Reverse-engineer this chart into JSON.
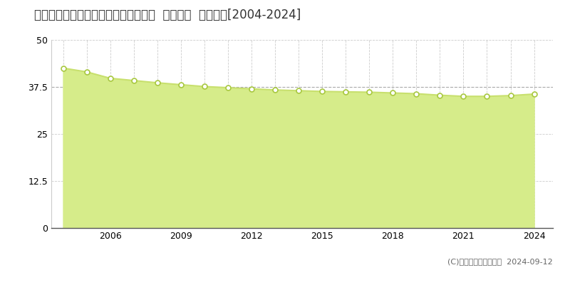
{
  "title": "愛知県知多市にしの台４丁目７番３外  地価公示  地価推移[2004-2024]",
  "years": [
    2004,
    2005,
    2006,
    2007,
    2008,
    2009,
    2010,
    2011,
    2012,
    2013,
    2014,
    2015,
    2016,
    2017,
    2018,
    2019,
    2020,
    2021,
    2022,
    2023,
    2024
  ],
  "values": [
    42.5,
    41.5,
    39.8,
    39.2,
    38.6,
    38.1,
    37.6,
    37.3,
    37.0,
    36.7,
    36.5,
    36.3,
    36.2,
    36.1,
    35.9,
    35.7,
    35.3,
    35.0,
    35.0,
    35.2,
    35.6
  ],
  "ylim": [
    0,
    50
  ],
  "yticks": [
    0,
    12.5,
    25,
    37.5,
    50
  ],
  "ytick_labels": [
    "0",
    "12.5",
    "25",
    "37.5",
    "50"
  ],
  "xticks": [
    2006,
    2009,
    2012,
    2015,
    2018,
    2021,
    2024
  ],
  "line_color": "#c8e06e",
  "fill_color": "#d6ec8a",
  "marker_facecolor": "#ffffff",
  "marker_edgecolor": "#a8c840",
  "bg_color": "#ffffff",
  "plot_bg_color": "#ffffff",
  "grid_color": "#cccccc",
  "spine_color": "#cccccc",
  "bottom_spine_color": "#555555",
  "legend_color": "#c8e06e",
  "copyright_text": "(C)土地価格ドットコム  2024-09-12",
  "title_fontsize": 12,
  "axis_fontsize": 9,
  "legend_fontsize": 9,
  "copyright_fontsize": 8
}
